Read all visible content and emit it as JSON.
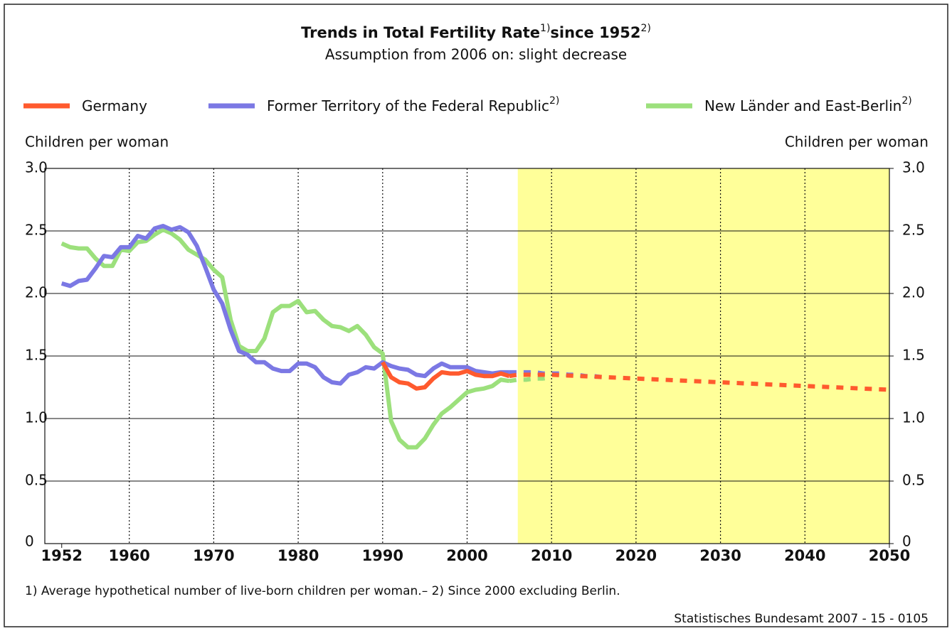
{
  "chart_data": {
    "type": "line",
    "title_parts": [
      "Trends in Total Fertility Rate",
      "1)",
      "since 1952",
      "2)"
    ],
    "subtitle": "Assumption from 2006 on: slight decrease",
    "ylabel": "Children per woman",
    "y2label": "Children per woman",
    "footnote": "1) Average hypothetical number of live-born children per woman.– 2) Since 2000 excluding Berlin.",
    "source": "Statistisches Bundesamt 2007 - 15 - 0105",
    "xlim": [
      1950,
      2050
    ],
    "xticks": [
      1952,
      1960,
      1970,
      1980,
      1990,
      2000,
      2010,
      2020,
      2030,
      2040,
      2050
    ],
    "ylim": [
      0,
      3
    ],
    "yticks": [
      0,
      0.5,
      {
        "value": 1,
        "label": "1.0"
      },
      1.5,
      {
        "value": 2,
        "label": "2.0"
      },
      2.5,
      {
        "value": 3,
        "label": "3.0"
      }
    ],
    "y2lim": [
      0,
      3
    ],
    "y2ticks": [
      0,
      0.5,
      {
        "value": 1,
        "label": "1.0"
      },
      1.5,
      {
        "value": 2,
        "label": "2.0"
      },
      2.5,
      {
        "value": 3,
        "label": "3.0"
      }
    ],
    "grid": true,
    "highlight": {
      "from": 2006,
      "to": 2050,
      "color": "#ffff99"
    },
    "series": [
      {
        "name": "New Länder and East-Berlin",
        "name_note": "2)",
        "color": "#9ce07c",
        "x": [
          1952,
          1953,
          1954,
          1955,
          1956,
          1957,
          1958,
          1959,
          1960,
          1961,
          1962,
          1963,
          1964,
          1965,
          1966,
          1967,
          1968,
          1969,
          1970,
          1971,
          1972,
          1973,
          1974,
          1975,
          1976,
          1977,
          1978,
          1979,
          1980,
          1981,
          1982,
          1983,
          1984,
          1985,
          1986,
          1987,
          1988,
          1989,
          1990,
          1991,
          1992,
          1993,
          1994,
          1995,
          1996,
          1997,
          1998,
          1999,
          2000,
          2001,
          2002,
          2003,
          2004,
          2005,
          2006,
          2007,
          2008,
          2009,
          2010
        ],
        "values": [
          2.4,
          2.37,
          2.36,
          2.36,
          2.28,
          2.22,
          2.22,
          2.35,
          2.34,
          2.41,
          2.42,
          2.47,
          2.51,
          2.48,
          2.43,
          2.35,
          2.31,
          2.27,
          2.19,
          2.13,
          1.79,
          1.58,
          1.54,
          1.54,
          1.64,
          1.85,
          1.9,
          1.9,
          1.94,
          1.85,
          1.86,
          1.79,
          1.74,
          1.73,
          1.7,
          1.74,
          1.67,
          1.57,
          1.52,
          0.98,
          0.83,
          0.77,
          0.77,
          0.84,
          0.95,
          1.04,
          1.09,
          1.15,
          1.21,
          1.23,
          1.24,
          1.26,
          1.31,
          1.3,
          1.31,
          1.31,
          1.32,
          1.32,
          1.33
        ]
      },
      {
        "name": "Former Territory of the Federal Republic",
        "name_note": "2)",
        "color": "#7b78e4",
        "x": [
          1952,
          1953,
          1954,
          1955,
          1956,
          1957,
          1958,
          1959,
          1960,
          1961,
          1962,
          1963,
          1964,
          1965,
          1966,
          1967,
          1968,
          1969,
          1970,
          1971,
          1972,
          1973,
          1974,
          1975,
          1976,
          1977,
          1978,
          1979,
          1980,
          1981,
          1982,
          1983,
          1984,
          1985,
          1986,
          1987,
          1988,
          1989,
          1990,
          1991,
          1992,
          1993,
          1994,
          1995,
          1996,
          1997,
          1998,
          1999,
          2000,
          2001,
          2002,
          2003,
          2004,
          2005,
          2006,
          2007,
          2008,
          2009,
          2010,
          2011,
          2012,
          2013,
          2014,
          2015,
          2016
        ],
        "values": [
          2.08,
          2.06,
          2.1,
          2.11,
          2.2,
          2.3,
          2.29,
          2.37,
          2.37,
          2.46,
          2.44,
          2.52,
          2.54,
          2.51,
          2.53,
          2.49,
          2.38,
          2.21,
          2.03,
          1.92,
          1.71,
          1.54,
          1.51,
          1.45,
          1.45,
          1.4,
          1.38,
          1.38,
          1.44,
          1.44,
          1.41,
          1.33,
          1.29,
          1.28,
          1.35,
          1.37,
          1.41,
          1.4,
          1.45,
          1.42,
          1.4,
          1.39,
          1.35,
          1.34,
          1.4,
          1.44,
          1.41,
          1.41,
          1.41,
          1.38,
          1.37,
          1.36,
          1.37,
          1.37,
          1.37,
          1.37,
          1.37,
          1.36,
          1.36,
          1.36,
          1.35,
          1.35,
          1.34,
          1.34,
          1.33
        ]
      },
      {
        "name": "Germany",
        "color": "#ff5a2e",
        "x": [
          1990,
          1991,
          1992,
          1993,
          1994,
          1995,
          1996,
          1997,
          1998,
          1999,
          2000,
          2001,
          2002,
          2003,
          2004,
          2005,
          2006,
          2010,
          2020,
          2030,
          2040,
          2050
        ],
        "values": [
          1.45,
          1.33,
          1.29,
          1.28,
          1.24,
          1.25,
          1.32,
          1.37,
          1.36,
          1.36,
          1.38,
          1.35,
          1.34,
          1.34,
          1.36,
          1.34,
          1.35,
          1.35,
          1.32,
          1.29,
          1.26,
          1.23
        ]
      }
    ]
  }
}
